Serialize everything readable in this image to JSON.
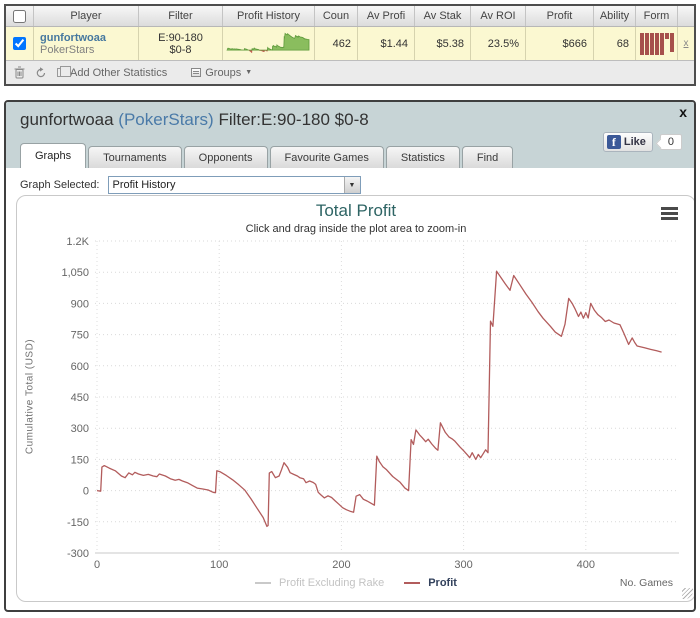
{
  "table": {
    "headers": {
      "player": "Player",
      "filter": "Filter",
      "profit_history": "Profit History",
      "count": "Coun",
      "av_profit": "Av Profi",
      "av_stake": "Av Stak",
      "av_roi": "Av ROI",
      "profit": "Profit",
      "ability": "Ability",
      "form": "Form"
    },
    "row": {
      "player_name": "gunfortwoaa",
      "player_site": "PokerStars",
      "filter_line1": "E:90-180",
      "filter_line2": "$0-8",
      "count": "462",
      "av_profit": "$1.44",
      "av_stake": "$5.38",
      "av_roi": "23.5%",
      "profit": "$666",
      "ability": "68",
      "remove_label": "x",
      "form_bars": [
        100,
        100,
        100,
        100,
        100,
        28,
        88
      ],
      "form_color": "#a6504b",
      "spark_pos_color": "#8abd5e",
      "spark_pos_stroke": "#5f9b3c",
      "spark_neg_color": "#c25b50"
    },
    "toolbar": {
      "add_other_statistics": "Add Other Statistics",
      "groups": "Groups",
      "groups_arrow": "▼"
    }
  },
  "window": {
    "title_player": "gunfortwoaa ",
    "title_site": "(PokerStars)",
    "title_filter": " Filter:E:90-180 $0-8",
    "close_label": "x",
    "like": {
      "f": "f",
      "label": "Like",
      "count": "0"
    },
    "tabs": [
      {
        "label": "Graphs"
      },
      {
        "label": "Tournaments"
      },
      {
        "label": "Opponents"
      },
      {
        "label": "Favourite Games"
      },
      {
        "label": "Statistics"
      },
      {
        "label": "Find"
      }
    ],
    "graph_selected_label": "Graph Selected:",
    "graph_selected_value": "Profit History",
    "select_arrow": "▼"
  },
  "chart_data": {
    "type": "line",
    "title": "Total Profit",
    "subtitle": "Click and drag inside the plot area to zoom-in",
    "ylabel": "Cumulative Total (USD)",
    "xlabel": "No. Games",
    "xlim": [
      0,
      473
    ],
    "ylim": [
      -300,
      1200
    ],
    "grid": "dotted",
    "legend_position": "bottom",
    "yticks": [
      {
        "value": 1200,
        "label": "1.2K"
      },
      {
        "value": 1050,
        "label": "1,050"
      },
      {
        "value": 900,
        "label": "900"
      },
      {
        "value": 750,
        "label": "750"
      },
      {
        "value": 600,
        "label": "600"
      },
      {
        "value": 450,
        "label": "450"
      },
      {
        "value": 300,
        "label": "300"
      },
      {
        "value": 150,
        "label": "150"
      },
      {
        "value": 0,
        "label": "0"
      },
      {
        "value": -150,
        "label": "-150"
      },
      {
        "value": -300,
        "label": "-300"
      }
    ],
    "xticks": [
      {
        "value": 0,
        "label": "0"
      },
      {
        "value": 100,
        "label": "100"
      },
      {
        "value": 200,
        "label": "200"
      },
      {
        "value": 300,
        "label": "300"
      },
      {
        "value": 400,
        "label": "400"
      }
    ],
    "legend": [
      {
        "name": "Profit Excluding Rake",
        "color": "#c9c9c9",
        "visible": false
      },
      {
        "name": "Profit",
        "color": "#b25c5c",
        "visible": true
      }
    ],
    "series": [
      {
        "name": "Profit",
        "color": "#b25c5c",
        "points": [
          [
            0,
            0
          ],
          [
            3,
            -3
          ],
          [
            4,
            113
          ],
          [
            6,
            120
          ],
          [
            10,
            108
          ],
          [
            15,
            95
          ],
          [
            20,
            70
          ],
          [
            23,
            62
          ],
          [
            26,
            85
          ],
          [
            29,
            76
          ],
          [
            31,
            88
          ],
          [
            34,
            80
          ],
          [
            38,
            73
          ],
          [
            42,
            78
          ],
          [
            46,
            70
          ],
          [
            49,
            67
          ],
          [
            51,
            80
          ],
          [
            56,
            70
          ],
          [
            60,
            57
          ],
          [
            64,
            50
          ],
          [
            67,
            54
          ],
          [
            70,
            46
          ],
          [
            74,
            38
          ],
          [
            78,
            25
          ],
          [
            82,
            12
          ],
          [
            86,
            8
          ],
          [
            91,
            3
          ],
          [
            95,
            -8
          ],
          [
            97,
            -10
          ],
          [
            98,
            95
          ],
          [
            101,
            90
          ],
          [
            106,
            72
          ],
          [
            111,
            52
          ],
          [
            116,
            28
          ],
          [
            121,
            2
          ],
          [
            126,
            -40
          ],
          [
            131,
            -85
          ],
          [
            136,
            -130
          ],
          [
            139,
            -172
          ],
          [
            140,
            -168
          ],
          [
            141,
            84
          ],
          [
            143,
            92
          ],
          [
            146,
            62
          ],
          [
            149,
            70
          ],
          [
            151,
            100
          ],
          [
            153,
            134
          ],
          [
            156,
            112
          ],
          [
            158,
            86
          ],
          [
            161,
            78
          ],
          [
            164,
            70
          ],
          [
            166,
            62
          ],
          [
            169,
            57
          ],
          [
            171,
            38
          ],
          [
            174,
            46
          ],
          [
            177,
            39
          ],
          [
            179,
            30
          ],
          [
            181,
            -8
          ],
          [
            183,
            -19
          ],
          [
            186,
            -35
          ],
          [
            189,
            -25
          ],
          [
            192,
            -33
          ],
          [
            195,
            -50
          ],
          [
            198,
            -66
          ],
          [
            201,
            -82
          ],
          [
            204,
            -92
          ],
          [
            207,
            -99
          ],
          [
            210,
            -104
          ],
          [
            212,
            -27
          ],
          [
            215,
            -19
          ],
          [
            218,
            -42
          ],
          [
            221,
            -50
          ],
          [
            224,
            -60
          ],
          [
            227,
            -70
          ],
          [
            229,
            166
          ],
          [
            231,
            140
          ],
          [
            234,
            115
          ],
          [
            237,
            100
          ],
          [
            242,
            68
          ],
          [
            248,
            40
          ],
          [
            252,
            12
          ],
          [
            255,
            0
          ],
          [
            257,
            245
          ],
          [
            259,
            222
          ],
          [
            261,
            292
          ],
          [
            264,
            268
          ],
          [
            266,
            256
          ],
          [
            269,
            235
          ],
          [
            271,
            247
          ],
          [
            274,
            224
          ],
          [
            277,
            204
          ],
          [
            279,
            194
          ],
          [
            281,
            326
          ],
          [
            285,
            280
          ],
          [
            288,
            258
          ],
          [
            291,
            247
          ],
          [
            293,
            237
          ],
          [
            297,
            210
          ],
          [
            300,
            192
          ],
          [
            303,
            172
          ],
          [
            305,
            158
          ],
          [
            307,
            182
          ],
          [
            310,
            150
          ],
          [
            312,
            174
          ],
          [
            314,
            158
          ],
          [
            318,
            196
          ],
          [
            320,
            182
          ],
          [
            322,
            815
          ],
          [
            324,
            790
          ],
          [
            327,
            1055
          ],
          [
            331,
            1020
          ],
          [
            334,
            995
          ],
          [
            338,
            963
          ],
          [
            341,
            1034
          ],
          [
            346,
            990
          ],
          [
            351,
            945
          ],
          [
            356,
            905
          ],
          [
            361,
            860
          ],
          [
            365,
            829
          ],
          [
            371,
            790
          ],
          [
            375,
            762
          ],
          [
            380,
            742
          ],
          [
            383,
            800
          ],
          [
            386,
            924
          ],
          [
            389,
            898
          ],
          [
            391,
            876
          ],
          [
            394,
            837
          ],
          [
            396,
            858
          ],
          [
            398,
            829
          ],
          [
            400,
            856
          ],
          [
            402,
            830
          ],
          [
            404,
            900
          ],
          [
            407,
            868
          ],
          [
            410,
            845
          ],
          [
            413,
            831
          ],
          [
            416,
            813
          ],
          [
            419,
            820
          ],
          [
            423,
            806
          ],
          [
            428,
            797
          ],
          [
            431,
            758
          ],
          [
            435,
            703
          ],
          [
            438,
            734
          ],
          [
            440,
            712
          ],
          [
            442,
            695
          ],
          [
            448,
            687
          ],
          [
            453,
            679
          ],
          [
            458,
            672
          ],
          [
            462,
            666
          ]
        ]
      }
    ]
  }
}
